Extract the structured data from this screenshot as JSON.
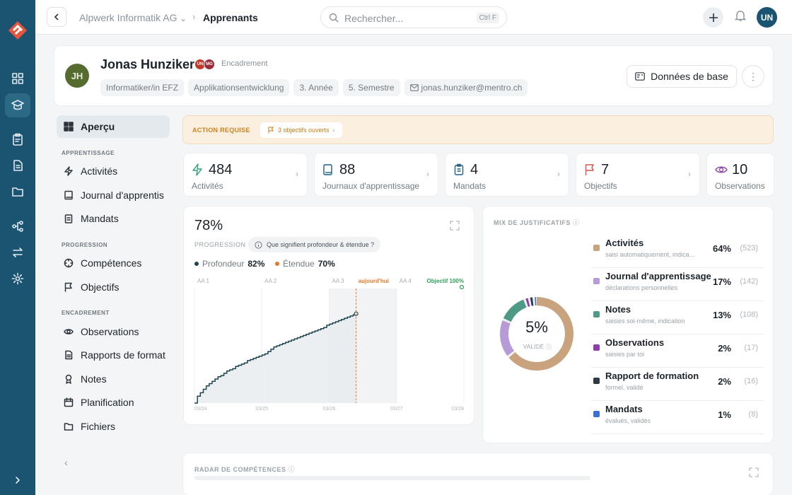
{
  "topbar": {
    "company": "Alpwerk Informatik AG",
    "page": "Apprenants",
    "search_placeholder": "Rechercher...",
    "search_shortcut": "Ctrl F",
    "user_initials": "UN"
  },
  "profile": {
    "initials": "JH",
    "name": "Jonas Hunziker",
    "badges": [
      "UN",
      "MG"
    ],
    "role_label": "Encadrement",
    "chips": [
      "Informatiker/in EFZ",
      "Applikationsentwicklung",
      "3. Année",
      "5. Semestre",
      "jonas.hunziker@mentro.ch"
    ],
    "base_button": "Données de base"
  },
  "nav": {
    "overview": "Aperçu",
    "sections": [
      {
        "title": "APPRENTISSAGE",
        "items": [
          "Activités",
          "Journal d'apprentis",
          "Mandats"
        ]
      },
      {
        "title": "PROGRESSION",
        "items": [
          "Compétences",
          "Objectifs"
        ]
      },
      {
        "title": "ENCADREMENT",
        "items": [
          "Observations",
          "Rapports de format",
          "Notes",
          "Planification",
          "Fichiers"
        ]
      }
    ]
  },
  "banner": {
    "label": "ACTION REQUISE",
    "pill": "3 objectifs ouverts"
  },
  "stats": [
    {
      "value": "484",
      "label": "Activités",
      "icon": "bolt-icon",
      "color": "#2f9f7a"
    },
    {
      "value": "88",
      "label": "Journaux d'apprentissage",
      "icon": "book-icon",
      "color": "#1f5f88"
    },
    {
      "value": "4",
      "label": "Mandats",
      "icon": "clipboard-icon",
      "color": "#1f5f88"
    },
    {
      "value": "7",
      "label": "Objectifs",
      "icon": "flag-icon",
      "color": "#d9534f"
    },
    {
      "value": "10",
      "label": "Observations",
      "icon": "eye-icon",
      "color": "#8e44ad"
    }
  ],
  "progress": {
    "percent": "78%",
    "label": "PROGRESSION",
    "question": "Que signifient profondeur & étendue ?",
    "legend": [
      {
        "name": "Profondeur",
        "value": "82%",
        "color": "#1d4650"
      },
      {
        "name": "Étendue",
        "value": "70%",
        "color": "#e07b2e"
      }
    ]
  },
  "chart_data": {
    "type": "line",
    "title": "",
    "bands": [
      "AA 1",
      "AA 2",
      "AA 3",
      "AA 4"
    ],
    "today_label": "aujourd'hui",
    "goal_label": "Objectif 100%",
    "x_ticks": [
      "03/24",
      "03/25",
      "03/26",
      "03/27",
      "03/28"
    ],
    "series": [
      {
        "values": [
          0,
          6,
          9,
          12,
          15,
          17,
          19,
          21,
          23,
          24,
          26,
          28,
          29,
          30,
          32,
          33,
          34,
          35,
          37,
          38,
          39,
          40,
          41,
          42,
          43,
          45,
          47,
          49,
          50,
          51,
          52,
          53,
          54,
          55,
          56,
          57,
          58,
          59,
          60,
          61,
          62,
          63,
          64,
          65,
          66,
          68,
          69,
          70,
          71,
          72,
          73,
          74,
          75,
          76,
          77,
          78
        ]
      }
    ],
    "ylim": [
      0,
      100
    ]
  },
  "mix": {
    "title": "MIX DE JUSTIFICATIFS",
    "center_value": "5%",
    "center_label": "VALIDÉ",
    "items": [
      {
        "name": "Activités",
        "sub": "saisi automatiquement, indica...",
        "pct": "64%",
        "count": "(523)",
        "color": "#c9a27e",
        "share": 64
      },
      {
        "name": "Journal d'apprentissage",
        "sub": "déclarations personnelles",
        "pct": "17%",
        "count": "(142)",
        "color": "#b79bd8",
        "share": 17
      },
      {
        "name": "Notes",
        "sub": "saisies soi-même, indication",
        "pct": "13%",
        "count": "(108)",
        "color": "#4f9a86",
        "share": 13
      },
      {
        "name": "Observations",
        "sub": "saisies par toi",
        "pct": "2%",
        "count": "(17)",
        "color": "#8e3ea6",
        "share": 2
      },
      {
        "name": "Rapport de formation",
        "sub": "formel, validé",
        "pct": "2%",
        "count": "(16)",
        "color": "#2d3a44",
        "share": 2
      },
      {
        "name": "Mandats",
        "sub": "évalués, validés",
        "pct": "1%",
        "count": "(8)",
        "color": "#3d6fd0",
        "share": 1
      }
    ]
  },
  "radar": {
    "title": "RADAR DE COMPÉTENCES"
  }
}
